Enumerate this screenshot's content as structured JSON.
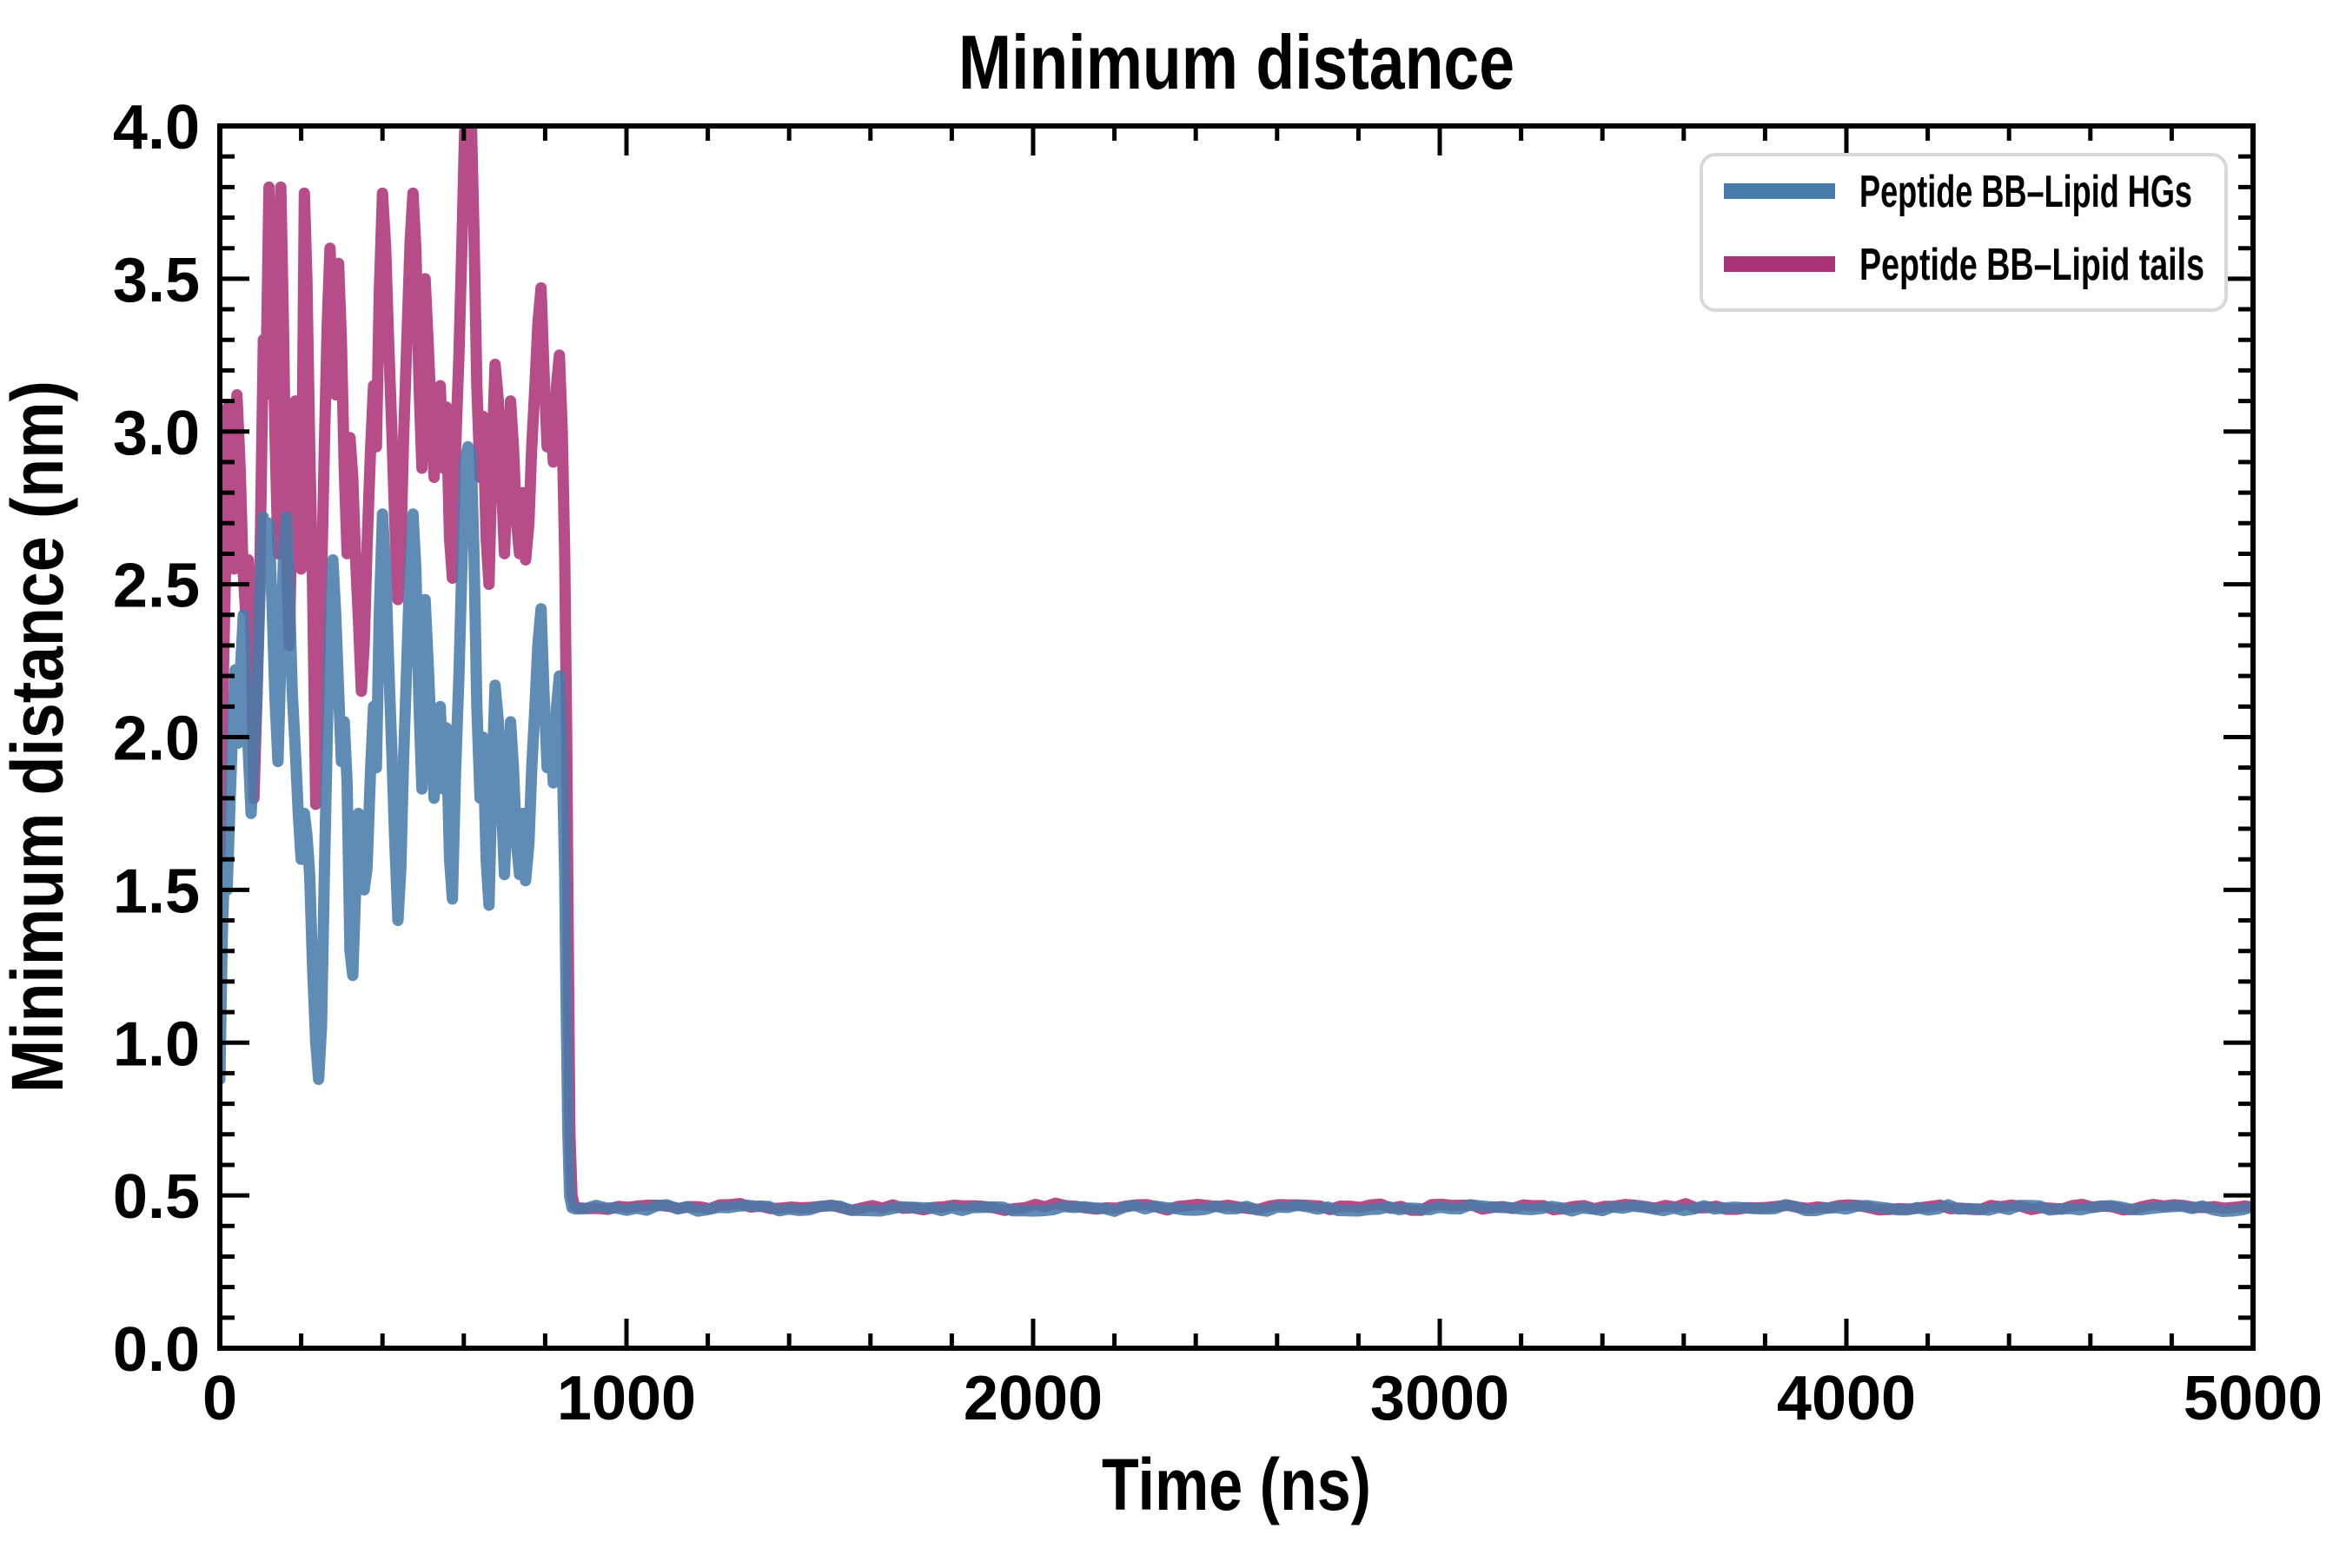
{
  "title": "Minimum distance",
  "axes": {
    "xlabel": "Time (ns)",
    "ylabel": "Minimum distance (nm)"
  },
  "legend": {
    "entries": [
      {
        "label": "Peptide BB–Lipid HGs",
        "color": "#477BA9"
      },
      {
        "label": "Peptide BB–Lipid tails",
        "color": "#AB3378"
      }
    ]
  },
  "chart_data": {
    "type": "line",
    "title": "Minimum distance",
    "xlabel": "Time (ns)",
    "ylabel": "Minimum distance (nm)",
    "xlim": [
      0,
      5000
    ],
    "ylim": [
      0.0,
      4.0
    ],
    "x_major_ticks": [
      0,
      1000,
      2000,
      3000,
      4000,
      5000
    ],
    "x_minor_step": 200,
    "y_major_ticks": [
      0.0,
      0.5,
      1.0,
      1.5,
      2.0,
      2.5,
      3.0,
      3.5,
      4.0
    ],
    "y_minor_step": 0.1,
    "grid": false,
    "legend_position": "upper right",
    "description": "Both minimum distances fluctuate strongly from 0 to ~860 ns (peptide far from membrane), then drop sharply to a flat ~0.46 nm contact distance maintained until 5000 ns.",
    "series": [
      {
        "name": "Peptide BB–Lipid tails",
        "color": "#AB3378",
        "points": [
          [
            0,
            1.6
          ],
          [
            8,
            2.15
          ],
          [
            14,
            2.55
          ],
          [
            20,
            3.08
          ],
          [
            28,
            2.6
          ],
          [
            35,
            2.55
          ],
          [
            42,
            3.12
          ],
          [
            50,
            2.88
          ],
          [
            57,
            2.55
          ],
          [
            63,
            2.42
          ],
          [
            70,
            2.58
          ],
          [
            77,
            2.35
          ],
          [
            84,
            1.8
          ],
          [
            91,
            2.12
          ],
          [
            99,
            2.58
          ],
          [
            107,
            3.3
          ],
          [
            113,
            3.12
          ],
          [
            121,
            3.8
          ],
          [
            128,
            3.52
          ],
          [
            136,
            2.98
          ],
          [
            143,
            2.6
          ],
          [
            150,
            3.8
          ],
          [
            157,
            3.3
          ],
          [
            164,
            2.6
          ],
          [
            171,
            2.3
          ],
          [
            178,
            2.78
          ],
          [
            186,
            3.1
          ],
          [
            193,
            2.85
          ],
          [
            200,
            2.55
          ],
          [
            208,
            3.78
          ],
          [
            214,
            3.5
          ],
          [
            221,
            2.95
          ],
          [
            228,
            2.5
          ],
          [
            236,
            1.78
          ],
          [
            243,
            2.1
          ],
          [
            250,
            2.5
          ],
          [
            257,
            2.95
          ],
          [
            264,
            3.35
          ],
          [
            271,
            3.6
          ],
          [
            278,
            3.38
          ],
          [
            285,
            3.12
          ],
          [
            292,
            3.55
          ],
          [
            299,
            3.3
          ],
          [
            306,
            2.88
          ],
          [
            313,
            2.6
          ],
          [
            320,
            2.98
          ],
          [
            327,
            2.85
          ],
          [
            334,
            2.58
          ],
          [
            341,
            2.38
          ],
          [
            348,
            2.15
          ],
          [
            355,
            2.3
          ],
          [
            362,
            2.62
          ],
          [
            370,
            2.92
          ],
          [
            378,
            3.15
          ],
          [
            385,
            2.95
          ],
          [
            392,
            3.45
          ],
          [
            400,
            3.78
          ],
          [
            408,
            3.6
          ],
          [
            415,
            3.3
          ],
          [
            423,
            3.0
          ],
          [
            430,
            2.72
          ],
          [
            438,
            2.45
          ],
          [
            445,
            2.62
          ],
          [
            452,
            2.98
          ],
          [
            460,
            3.3
          ],
          [
            468,
            3.62
          ],
          [
            475,
            3.78
          ],
          [
            482,
            3.6
          ],
          [
            490,
            3.15
          ],
          [
            497,
            2.88
          ],
          [
            505,
            3.5
          ],
          [
            512,
            3.3
          ],
          [
            520,
            3.05
          ],
          [
            527,
            2.85
          ],
          [
            535,
            3.05
          ],
          [
            542,
            3.15
          ],
          [
            550,
            2.88
          ],
          [
            557,
            3.08
          ],
          [
            565,
            2.65
          ],
          [
            572,
            2.52
          ],
          [
            580,
            2.95
          ],
          [
            588,
            3.25
          ],
          [
            595,
            3.6
          ],
          [
            602,
            3.98
          ],
          [
            610,
            4.05
          ],
          [
            618,
            4.05
          ],
          [
            625,
            3.65
          ],
          [
            632,
            3.15
          ],
          [
            640,
            2.85
          ],
          [
            647,
            3.05
          ],
          [
            655,
            2.65
          ],
          [
            662,
            2.5
          ],
          [
            670,
            2.95
          ],
          [
            677,
            3.22
          ],
          [
            685,
            3.1
          ],
          [
            692,
            2.85
          ],
          [
            700,
            2.6
          ],
          [
            707,
            2.85
          ],
          [
            715,
            3.1
          ],
          [
            722,
            2.95
          ],
          [
            730,
            2.7
          ],
          [
            737,
            2.6
          ],
          [
            745,
            2.8
          ],
          [
            752,
            2.58
          ],
          [
            760,
            2.7
          ],
          [
            767,
            2.95
          ],
          [
            775,
            3.15
          ],
          [
            782,
            3.35
          ],
          [
            790,
            3.47
          ],
          [
            797,
            3.2
          ],
          [
            805,
            2.95
          ],
          [
            812,
            3.1
          ],
          [
            820,
            2.9
          ],
          [
            828,
            3.15
          ],
          [
            835,
            3.25
          ],
          [
            842,
            3.0
          ],
          [
            848,
            2.6
          ],
          [
            853,
            2.0
          ],
          [
            857,
            1.3
          ],
          [
            861,
            0.7
          ],
          [
            866,
            0.5
          ],
          [
            872,
            0.465
          ]
        ],
        "flat_tail": {
          "from": 880,
          "to": 5000,
          "step": 25,
          "value": 0.462,
          "noise_amplitude": 0.013,
          "seed": 2
        }
      },
      {
        "name": "Peptide BB–Lipid HGs",
        "color": "#477BA9",
        "points": [
          [
            0,
            0.88
          ],
          [
            6,
            1.35
          ],
          [
            12,
            1.6
          ],
          [
            18,
            1.5
          ],
          [
            25,
            1.78
          ],
          [
            32,
            2.05
          ],
          [
            38,
            2.22
          ],
          [
            45,
            1.98
          ],
          [
            52,
            2.25
          ],
          [
            58,
            2.4
          ],
          [
            64,
            2.15
          ],
          [
            70,
            1.95
          ],
          [
            77,
            1.75
          ],
          [
            84,
            1.95
          ],
          [
            91,
            2.12
          ],
          [
            99,
            2.48
          ],
          [
            107,
            2.72
          ],
          [
            113,
            2.55
          ],
          [
            121,
            2.7
          ],
          [
            128,
            2.45
          ],
          [
            136,
            2.12
          ],
          [
            143,
            1.92
          ],
          [
            150,
            2.25
          ],
          [
            157,
            2.62
          ],
          [
            164,
            2.72
          ],
          [
            171,
            2.48
          ],
          [
            178,
            2.15
          ],
          [
            186,
            1.95
          ],
          [
            193,
            1.75
          ],
          [
            200,
            1.6
          ],
          [
            208,
            1.75
          ],
          [
            214,
            1.68
          ],
          [
            221,
            1.55
          ],
          [
            228,
            1.25
          ],
          [
            236,
            1.0
          ],
          [
            243,
            0.88
          ],
          [
            250,
            1.05
          ],
          [
            257,
            1.55
          ],
          [
            264,
            2.0
          ],
          [
            271,
            2.38
          ],
          [
            278,
            2.58
          ],
          [
            285,
            2.4
          ],
          [
            292,
            2.15
          ],
          [
            299,
            1.92
          ],
          [
            306,
            2.05
          ],
          [
            313,
            1.85
          ],
          [
            320,
            1.3
          ],
          [
            327,
            1.22
          ],
          [
            334,
            1.5
          ],
          [
            341,
            1.75
          ],
          [
            348,
            1.6
          ],
          [
            355,
            1.5
          ],
          [
            362,
            1.57
          ],
          [
            370,
            1.87
          ],
          [
            378,
            2.1
          ],
          [
            385,
            1.9
          ],
          [
            392,
            2.4
          ],
          [
            400,
            2.73
          ],
          [
            408,
            2.55
          ],
          [
            415,
            2.25
          ],
          [
            423,
            1.95
          ],
          [
            430,
            1.67
          ],
          [
            438,
            1.4
          ],
          [
            445,
            1.57
          ],
          [
            452,
            1.93
          ],
          [
            460,
            2.25
          ],
          [
            468,
            2.57
          ],
          [
            475,
            2.73
          ],
          [
            482,
            2.55
          ],
          [
            490,
            2.1
          ],
          [
            497,
            1.83
          ],
          [
            505,
            2.45
          ],
          [
            512,
            2.25
          ],
          [
            520,
            2.0
          ],
          [
            527,
            1.8
          ],
          [
            535,
            2.0
          ],
          [
            542,
            2.1
          ],
          [
            550,
            1.83
          ],
          [
            557,
            2.03
          ],
          [
            565,
            1.6
          ],
          [
            572,
            1.47
          ],
          [
            580,
            1.9
          ],
          [
            588,
            2.2
          ],
          [
            595,
            2.55
          ],
          [
            602,
            2.9
          ],
          [
            610,
            2.95
          ],
          [
            618,
            2.93
          ],
          [
            625,
            2.6
          ],
          [
            632,
            2.1
          ],
          [
            640,
            1.8
          ],
          [
            647,
            2.0
          ],
          [
            655,
            1.6
          ],
          [
            662,
            1.45
          ],
          [
            670,
            1.9
          ],
          [
            677,
            2.17
          ],
          [
            685,
            2.05
          ],
          [
            692,
            1.8
          ],
          [
            700,
            1.55
          ],
          [
            707,
            1.8
          ],
          [
            715,
            2.05
          ],
          [
            722,
            1.9
          ],
          [
            730,
            1.65
          ],
          [
            737,
            1.55
          ],
          [
            745,
            1.75
          ],
          [
            752,
            1.53
          ],
          [
            760,
            1.65
          ],
          [
            767,
            1.9
          ],
          [
            775,
            2.1
          ],
          [
            782,
            2.3
          ],
          [
            790,
            2.42
          ],
          [
            797,
            2.15
          ],
          [
            805,
            1.9
          ],
          [
            812,
            2.05
          ],
          [
            820,
            1.85
          ],
          [
            828,
            2.1
          ],
          [
            835,
            2.2
          ],
          [
            842,
            1.95
          ],
          [
            848,
            1.55
          ],
          [
            852,
            1.1
          ],
          [
            856,
            0.7
          ],
          [
            860,
            0.5
          ],
          [
            866,
            0.46
          ]
        ],
        "flat_tail": {
          "from": 875,
          "to": 5000,
          "step": 25,
          "value": 0.458,
          "noise_amplitude": 0.012,
          "seed": 7
        }
      }
    ]
  }
}
